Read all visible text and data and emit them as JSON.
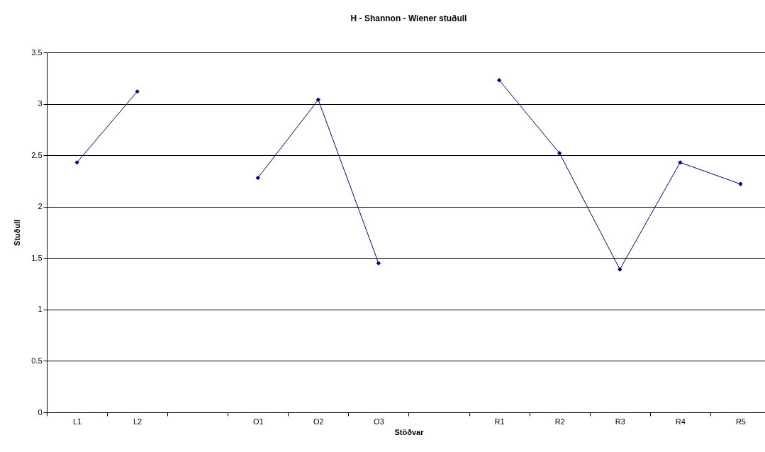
{
  "chart_data": {
    "type": "line",
    "title": "H - Shannon - Wiener stuðull",
    "xlabel": "Stöðvar",
    "ylabel": "Stuðull",
    "categories": [
      "L1",
      "L2",
      null,
      "O1",
      "O2",
      "O3",
      null,
      "R1",
      "R2",
      "R3",
      "R4",
      "R5"
    ],
    "series": [
      {
        "color": "#000080",
        "values": [
          2.43,
          3.12,
          null,
          2.28,
          3.04,
          1.45,
          null,
          3.23,
          2.52,
          1.39,
          2.43,
          2.22
        ]
      }
    ],
    "ylim": [
      0,
      3.5
    ],
    "yticks": [
      0,
      0.5,
      1,
      1.5,
      2,
      2.5,
      3,
      3.5
    ],
    "grid": "y",
    "marker": "diamond",
    "legend": false
  }
}
